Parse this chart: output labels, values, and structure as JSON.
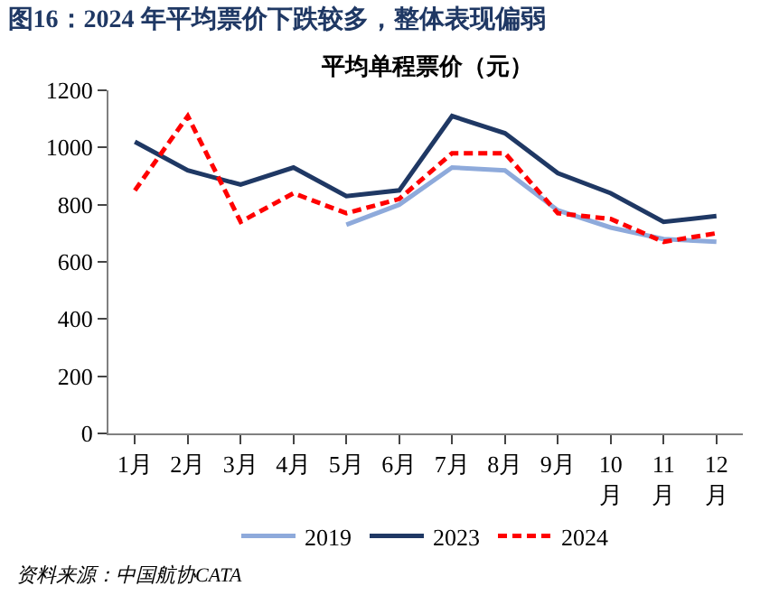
{
  "chart_data": {
    "type": "line",
    "title": "图16：2024 年平均票价下跌较多，整体表现偏弱",
    "subtitle": "平均单程票价（元）",
    "categories": [
      "1月",
      "2月",
      "3月",
      "4月",
      "5月",
      "6月",
      "7月",
      "8月",
      "9月",
      "10月",
      "11月",
      "12月"
    ],
    "series": [
      {
        "name": "2019",
        "color": "#8eaadb",
        "values": [
          null,
          null,
          null,
          null,
          730,
          800,
          930,
          920,
          780,
          720,
          680,
          670
        ]
      },
      {
        "name": "2023",
        "color": "#1f3864",
        "values": [
          1020,
          920,
          870,
          930,
          830,
          850,
          1110,
          1050,
          910,
          840,
          740,
          760
        ]
      },
      {
        "name": "2024",
        "color": "#ff0000",
        "line_style": "dashed",
        "values": [
          850,
          1110,
          740,
          840,
          770,
          820,
          980,
          980,
          770,
          750,
          670,
          700
        ]
      }
    ],
    "ylim": [
      0,
      1200
    ],
    "yticks": [
      0,
      200,
      400,
      600,
      800,
      1000,
      1200
    ],
    "legend": "bottom",
    "marker": "none",
    "annotations": [
      "资料来源：中国航协CATA"
    ]
  }
}
